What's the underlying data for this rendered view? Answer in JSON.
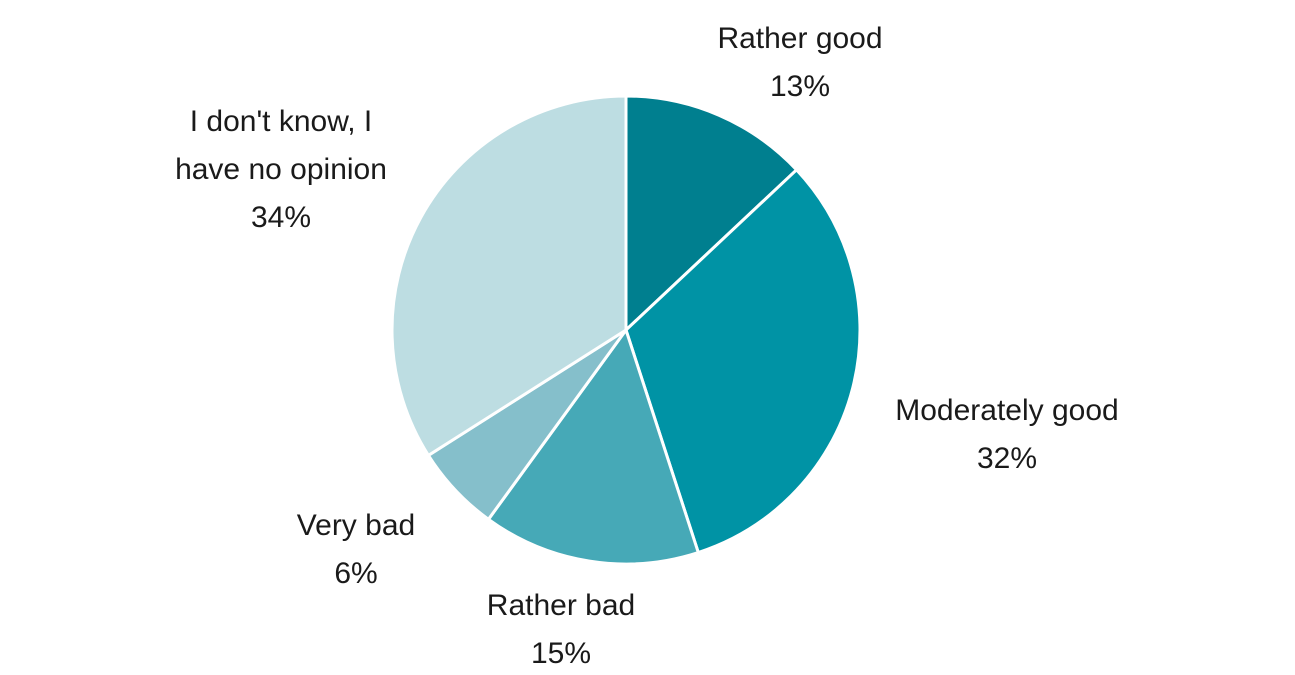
{
  "chart_data": {
    "type": "pie",
    "title": "",
    "start_angle_deg": 0,
    "direction": "clockwise",
    "slices": [
      {
        "label_lines": [
          "Rather good"
        ],
        "value": 13,
        "value_label": "13%",
        "color": "#007f8f"
      },
      {
        "label_lines": [
          "Moderately good"
        ],
        "value": 32,
        "value_label": "32%",
        "color": "#0093a5"
      },
      {
        "label_lines": [
          "Rather bad"
        ],
        "value": 15,
        "value_label": "15%",
        "color": "#46a9b7"
      },
      {
        "label_lines": [
          "Very bad"
        ],
        "value": 6,
        "value_label": "6%",
        "color": "#85bfcb"
      },
      {
        "label_lines": [
          "I don't know, I",
          "have no opinion"
        ],
        "value": 34,
        "value_label": "34%",
        "color": "#bddde2"
      }
    ]
  }
}
